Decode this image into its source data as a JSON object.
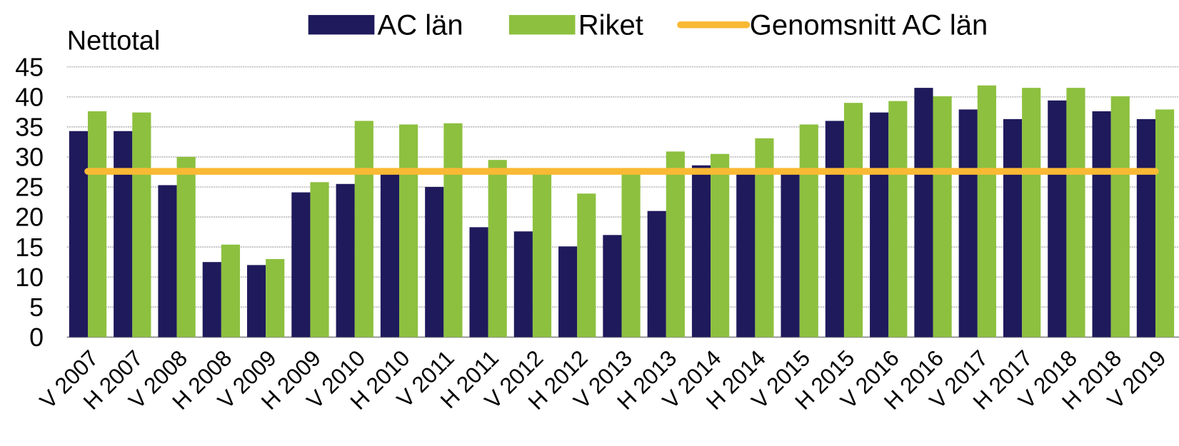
{
  "chart_data": {
    "type": "bar",
    "y_label": "Nettotal",
    "categories": [
      "V 2007",
      "H 2007",
      "V 2008",
      "H 2008",
      "V 2009",
      "H 2009",
      "V 2010",
      "H 2010",
      "V 2011",
      "H 2011",
      "V 2012",
      "H 2012",
      "V 2013",
      "H 2013",
      "V 2014",
      "H 2014",
      "V 2015",
      "H 2015",
      "V 2016",
      "H 2016",
      "V 2017",
      "H 2017",
      "V 2018",
      "H 2018",
      "V 2019"
    ],
    "series": [
      {
        "name": "AC län",
        "color": "#1f1a5c",
        "values": [
          34.3,
          34.3,
          25.3,
          12.5,
          12,
          24.1,
          25.5,
          27.1,
          25,
          18.3,
          17.6,
          15.1,
          17,
          21,
          28.6,
          27.5,
          27.5,
          36,
          37.4,
          41.5,
          37.9,
          36.3,
          39.4,
          37.6,
          36.3
        ]
      },
      {
        "name": "Riket",
        "color": "#8dc03f",
        "values": [
          37.6,
          37.4,
          30,
          15.4,
          13,
          25.8,
          36,
          35.4,
          35.6,
          29.5,
          27.8,
          23.9,
          27.8,
          30.9,
          30.5,
          33.1,
          35.4,
          39,
          39.3,
          40.1,
          41.9,
          41.5,
          41.5,
          40.1,
          37.9
        ]
      },
      {
        "name": "Genomsnitt AC län",
        "type": "line",
        "color": "#f9b934",
        "values": [
          27.6,
          27.6,
          27.6,
          27.6,
          27.6,
          27.6,
          27.6,
          27.6,
          27.6,
          27.6,
          27.6,
          27.6,
          27.6,
          27.6,
          27.6,
          27.6,
          27.6,
          27.6,
          27.6,
          27.6,
          27.6,
          27.6,
          27.6,
          27.6,
          27.6
        ]
      }
    ],
    "ylim": [
      0,
      45
    ],
    "yticks": [
      0,
      5,
      10,
      15,
      20,
      25,
      30,
      35,
      40,
      45
    ],
    "grid": true,
    "legend": "top"
  }
}
